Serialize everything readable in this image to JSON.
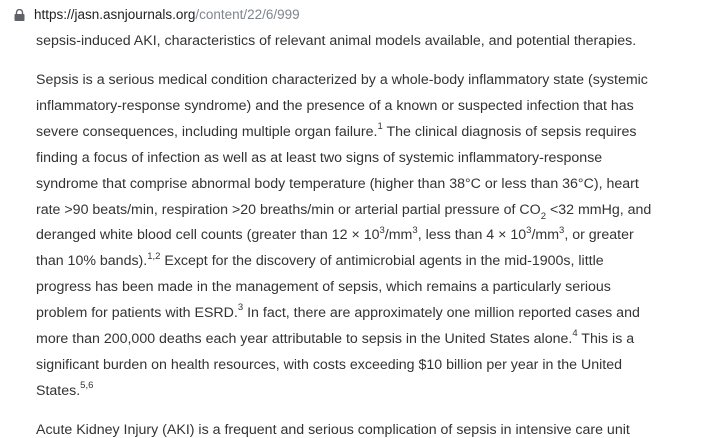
{
  "browser": {
    "url_host": "https://jasn.asnjournals.org",
    "url_path": "/content/22/6/999"
  },
  "article": {
    "prev_line": "sepsis-induced AKI, characteristics of relevant animal models available, and potential therapies.",
    "lines": [
      {
        "parts": [
          {
            "t": "Sepsis is a serious medical condition characterized by a whole-body inflammatory state (systemic"
          }
        ]
      },
      {
        "parts": [
          {
            "t": "inflammatory-response syndrome) and the presence of a known or suspected infection that has"
          }
        ]
      },
      {
        "parts": [
          {
            "t": "severe consequences, including multiple organ failure."
          },
          {
            "sup": "1"
          },
          {
            "t": " The clinical diagnosis of sepsis requires"
          }
        ]
      },
      {
        "parts": [
          {
            "t": "finding a focus of infection as well as at least two signs of systemic inflammatory-response"
          }
        ]
      },
      {
        "parts": [
          {
            "t": "syndrome that comprise abnormal body temperature (higher than 38°C or less than 36°C), heart"
          }
        ]
      },
      {
        "parts": [
          {
            "t": "rate >90 beats/min, respiration >20 breaths/min or arterial partial pressure of CO"
          },
          {
            "sub": "2"
          },
          {
            "t": " <32 mmHg, and"
          }
        ]
      },
      {
        "parts": [
          {
            "t": "deranged white blood cell counts (greater than 12 × 10"
          },
          {
            "sup": "3"
          },
          {
            "t": "/mm"
          },
          {
            "sup": "3"
          },
          {
            "t": ", less than 4 × 10"
          },
          {
            "sup": "3"
          },
          {
            "t": "/mm"
          },
          {
            "sup": "3"
          },
          {
            "t": ", or greater"
          }
        ]
      },
      {
        "parts": [
          {
            "t": "than 10% bands)."
          },
          {
            "sup": "1,2"
          },
          {
            "t": " Except for the discovery of antimicrobial agents in the mid-1900s, little"
          }
        ]
      },
      {
        "parts": [
          {
            "t": "progress has been made in the management of sepsis, which remains a particularly serious"
          }
        ]
      },
      {
        "parts": [
          {
            "t": "problem for patients with ESRD."
          },
          {
            "sup": "3"
          },
          {
            "t": " In fact, there are approximately one million reported cases and"
          }
        ]
      },
      {
        "parts": [
          {
            "t": "more than 200,000 deaths each year attributable to sepsis in the United States alone."
          },
          {
            "sup": "4"
          },
          {
            "t": " This is a"
          }
        ]
      },
      {
        "parts": [
          {
            "t": "significant burden on health resources, with costs exceeding $10 billion per year in the United"
          }
        ]
      },
      {
        "parts": [
          {
            "t": "States."
          },
          {
            "sup": "5,6"
          }
        ]
      }
    ],
    "cut_line": "Acute Kidney Injury (AKI) is a frequent and serious complication of sepsis in intensive care unit"
  }
}
